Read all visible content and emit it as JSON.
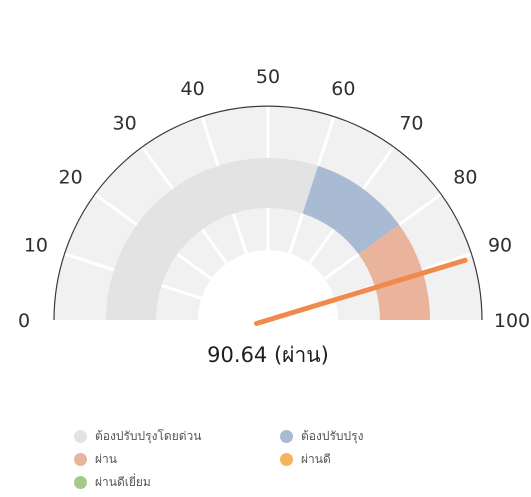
{
  "chart_data": {
    "type": "gauge",
    "value": 90.64,
    "value_label": "90.64 (ผ่าน)",
    "min": 0,
    "max": 100,
    "ticks": [
      "0",
      "10",
      "20",
      "30",
      "40",
      "50",
      "60",
      "70",
      "80",
      "90",
      "100"
    ],
    "bands": [
      {
        "from": 0,
        "to": 60,
        "color": "#e3e3e3"
      },
      {
        "from": 60,
        "to": 80,
        "color": "#a9bad3"
      },
      {
        "from": 80,
        "to": 100,
        "color": "#eab39c"
      }
    ],
    "legend": [
      {
        "label": "ต้องปรับปรุงโดยด่วน",
        "color": "#e3e3e3"
      },
      {
        "label": "ต้องปรับปรุง",
        "color": "#a9bad3"
      },
      {
        "label": "ผ่าน",
        "color": "#eab39c"
      },
      {
        "label": "ผ่านดี",
        "color": "#f4b55c"
      },
      {
        "label": "ผ่านดีเยี่ยม",
        "color": "#a5c98a"
      }
    ],
    "needle_color": "#ef8a4c",
    "track_color": "#f1f1f1",
    "outline_color": "#3a3a3a"
  }
}
